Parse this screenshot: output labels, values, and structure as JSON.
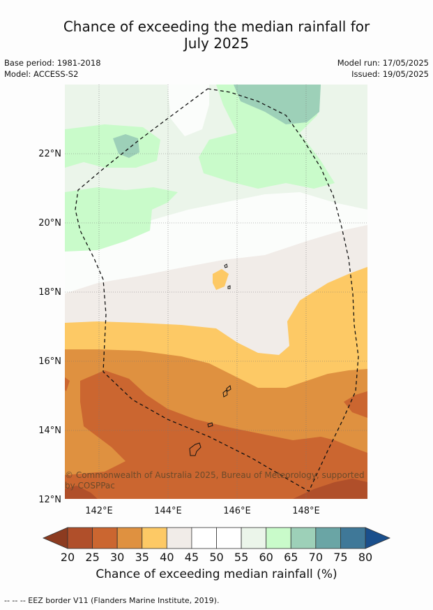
{
  "title_line1": "Chance of exceeding the median rainfall for",
  "title_line2": "July 2025",
  "base_period": "Base period: 1981-2018",
  "model": "Model: ACCESS-S2",
  "model_run": "Model run: 17/05/2025",
  "issued": "Issued: 19/05/2025",
  "lat_labels": [
    "22°N",
    "20°N",
    "18°N",
    "16°N",
    "14°N",
    "12°N"
  ],
  "lon_labels": [
    "142°E",
    "144°E",
    "146°E",
    "148°E"
  ],
  "copyright_line1": "© Commonwealth of Australia 2025, Bureau of Meteorology, supported",
  "copyright_line2": "by COSPPac",
  "colorbar": {
    "title": "Chance of exceeding median rainfall (%)",
    "ticks": [
      "20",
      "25",
      "30",
      "35",
      "40",
      "45",
      "50",
      "55",
      "60",
      "65",
      "70",
      "75",
      "80"
    ],
    "colors": [
      "#b04f2a",
      "#cb6630",
      "#df9140",
      "#fdc965",
      "#f1ece8",
      "#ffffff",
      "#ffffff",
      "#ebf5ea",
      "#c9fbca",
      "#9dd0b8",
      "#6aa5a5",
      "#3f7898"
    ],
    "under_color": "#8c3b20",
    "over_color": "#1a4f8c"
  },
  "legend_footer": "--  --  -- EEZ border V11 (Flanders Marine Institute, 2019)."
}
